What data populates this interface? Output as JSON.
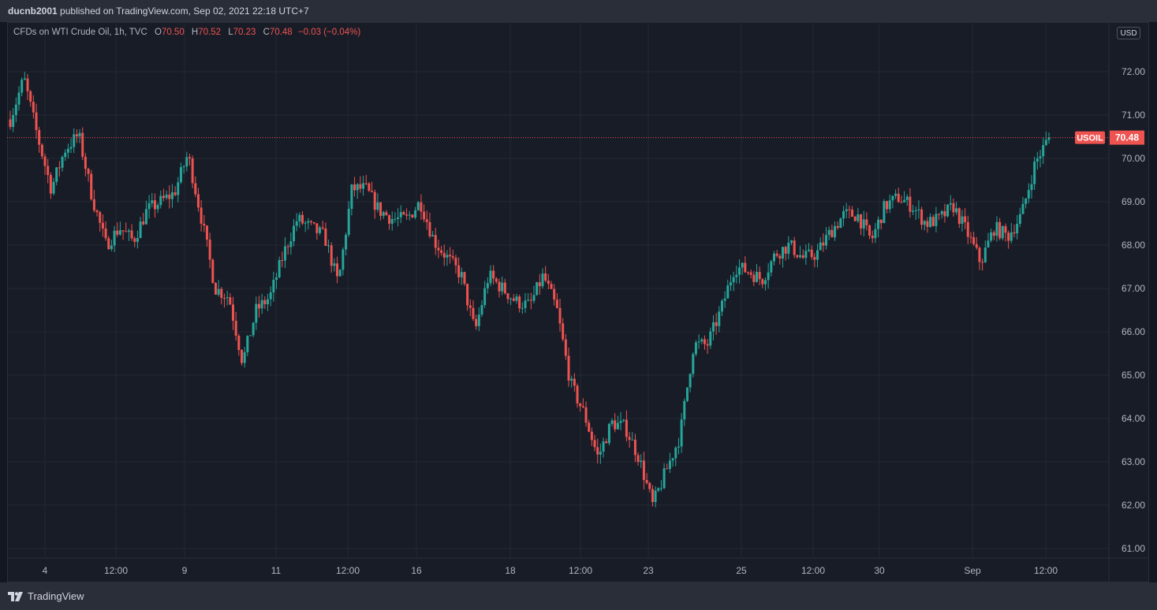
{
  "header": {
    "publisher": "ducnb2001",
    "text": "published on TradingView.com, Sep 02, 2021 22:18 UTC+7"
  },
  "legend": {
    "symbol": "CFDs on WTI Crude Oil, 1h, TVC",
    "open_label": "O",
    "open": "70.50",
    "high_label": "H",
    "high": "70.52",
    "low_label": "L",
    "low": "70.23",
    "close_label": "C",
    "close": "70.48",
    "change": "−0.03 (−0.04%)"
  },
  "price_scale": {
    "currency": "USD"
  },
  "last_price": {
    "symbol_label": "USOIL",
    "value": "70.48"
  },
  "footer": {
    "brand": "TradingView",
    "logo_icon": "tradingview-logo-icon"
  },
  "colors": {
    "up": "#26a69a",
    "down": "#ef5350",
    "background": "#181c27",
    "grid": "#242833"
  },
  "chart_data": {
    "type": "candlestick",
    "title": "CFDs on WTI Crude Oil, 1h, TVC",
    "symbol": "USOIL",
    "interval": "1h",
    "y_ticks": [
      "61.00",
      "62.00",
      "63.00",
      "64.00",
      "65.00",
      "66.00",
      "67.00",
      "68.00",
      "69.00",
      "70.00",
      "71.00",
      "72.00"
    ],
    "ylim": [
      60.75,
      72.8
    ],
    "x_ticks": [
      {
        "label": "4",
        "dates": "Aug 4"
      },
      {
        "label": "12:00",
        "dates": "Aug 5"
      },
      {
        "label": "9",
        "dates": "Aug 9"
      },
      {
        "label": "11",
        "dates": "Aug 11"
      },
      {
        "label": "12:00",
        "dates": "Aug 12"
      },
      {
        "label": "16",
        "dates": "Aug 16"
      },
      {
        "label": "18",
        "dates": "Aug 18"
      },
      {
        "label": "12:00",
        "dates": "Aug 19"
      },
      {
        "label": "23",
        "dates": "Aug 23"
      },
      {
        "label": "25",
        "dates": "Aug 25"
      },
      {
        "label": "12:00",
        "dates": "Aug 26"
      },
      {
        "label": "30",
        "dates": "Aug 30"
      },
      {
        "label": "Sep",
        "dates": "Sep 1"
      },
      {
        "label": "12:00",
        "dates": "Sep 2"
      }
    ],
    "approx_close_path": [
      70.9,
      71.85,
      70.5,
      69.3,
      70.2,
      70.55,
      69.1,
      68.0,
      68.4,
      68.1,
      68.8,
      69.0,
      69.2,
      70.1,
      68.6,
      67.0,
      66.8,
      65.3,
      66.5,
      66.8,
      67.8,
      68.6,
      68.4,
      68.2,
      67.1,
      69.3,
      69.3,
      68.8,
      68.6,
      68.6,
      69.0,
      68.1,
      67.7,
      67.3,
      66.0,
      67.3,
      67.0,
      66.7,
      66.6,
      67.3,
      66.5,
      64.8,
      64.1,
      63.1,
      63.9,
      63.8,
      63.1,
      62.0,
      62.8,
      63.6,
      65.7,
      65.7,
      66.5,
      67.5,
      67.4,
      67.2,
      67.8,
      68.0,
      67.7,
      67.8,
      68.3,
      68.7,
      68.7,
      68.1,
      68.9,
      69.1,
      68.9,
      68.5,
      68.6,
      68.9,
      68.3,
      67.6,
      68.4,
      68.2,
      68.7,
      69.9,
      70.48
    ],
    "last": 70.48
  }
}
